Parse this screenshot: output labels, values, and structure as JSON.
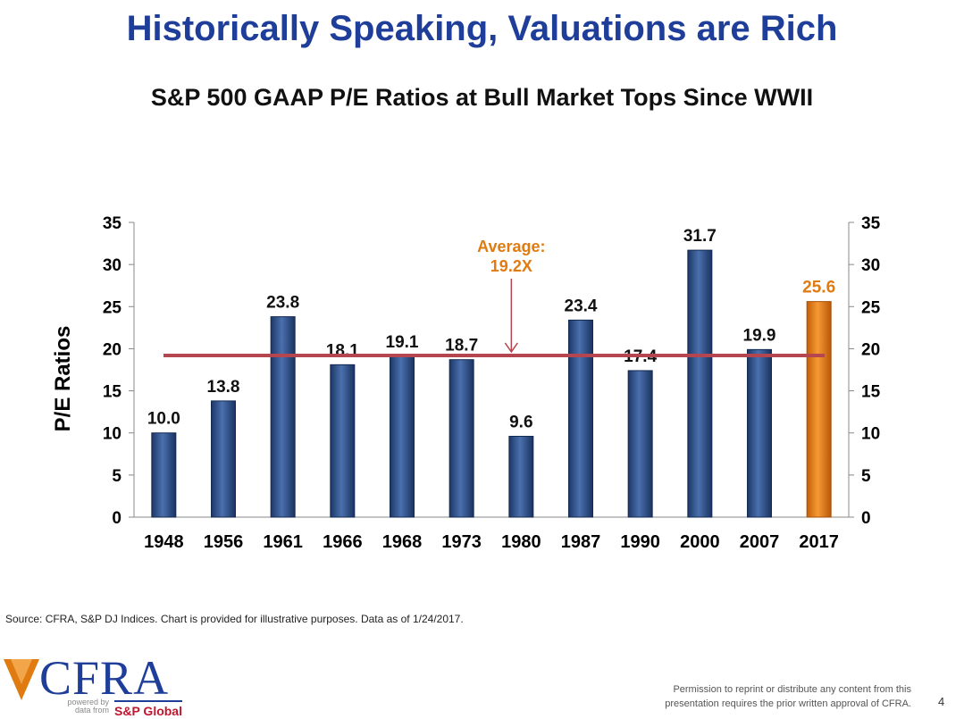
{
  "title": "Historically Speaking, Valuations are Rich",
  "source": "Source: CFRA, S&P DJ Indices. Chart is provided for illustrative purposes. Data as of 1/24/2017.",
  "logo": {
    "name": "CFRA",
    "powered_by": "powered by data from",
    "partner": "S&P Global"
  },
  "permission": [
    "Permission to reprint or distribute any content from this",
    "presentation requires the prior written approval of CFRA."
  ],
  "page_number": "4",
  "colors": {
    "title": "#1f3e9a",
    "bar": "#2a4a80",
    "bar_highlight": "#e07b12",
    "average_line": "#b5464f",
    "annotation": "#e07b12"
  },
  "chart_data": {
    "type": "bar",
    "title": "S&P 500 GAAP P/E Ratios at Bull Market Tops Since WWII",
    "ylabel": "P/E Ratios",
    "xlabel": "",
    "categories": [
      "1948",
      "1956",
      "1961",
      "1966",
      "1968",
      "1973",
      "1980",
      "1987",
      "1990",
      "2000",
      "2007",
      "2017"
    ],
    "values": [
      10.0,
      13.8,
      23.8,
      18.1,
      19.1,
      18.7,
      9.6,
      23.4,
      17.4,
      31.7,
      19.9,
      25.6
    ],
    "data_labels": [
      "10.0",
      "13.8",
      "23.8",
      "18.1",
      "19.1",
      "18.7",
      "9.6",
      "23.4",
      "17.4",
      "31.7",
      "19.9",
      "25.6"
    ],
    "highlight_index": 11,
    "ylim": [
      0,
      35
    ],
    "yticks": [
      "0",
      "5",
      "10",
      "15",
      "20",
      "25",
      "30",
      "35"
    ],
    "secondary_y_axis": true,
    "grid": false,
    "average": {
      "value": 19.2,
      "label_lines": [
        "Average:",
        "19.2X"
      ]
    }
  }
}
